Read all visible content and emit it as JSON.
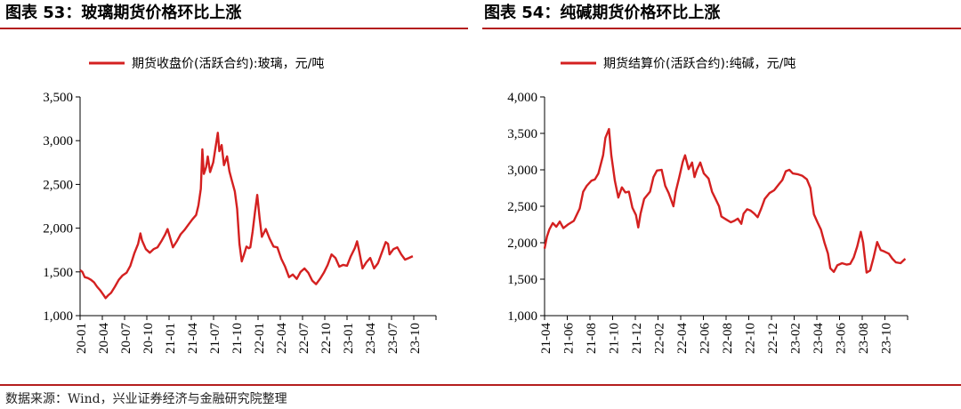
{
  "figures": {
    "left_title": "图表 53：玻璃期货价格环比上涨",
    "right_title": "图表 54：纯碱期货价格环比上涨"
  },
  "source": "数据来源：Wind，兴业证券经济与金融研究院整理",
  "colors": {
    "series": "#d42020",
    "accent": "#b41e1e",
    "axis": "#000000"
  },
  "chart_data": [
    {
      "type": "line",
      "legend": "期货收盘价(活跃合约):玻璃，元/吨",
      "ylim": [
        1000,
        3500
      ],
      "yticks": [
        1000,
        1500,
        2000,
        2500,
        3000,
        3500
      ],
      "ytick_labels": [
        "1,000",
        "1,500",
        "2,000",
        "2,500",
        "3,000",
        "3,500"
      ],
      "xtick_labels": [
        "20-01",
        "20-04",
        "20-07",
        "20-10",
        "21-01",
        "21-04",
        "21-07",
        "21-10",
        "22-01",
        "22-04",
        "22-07",
        "22-10",
        "23-01",
        "23-04",
        "23-07",
        "23-10"
      ],
      "x_range_months": [
        0,
        46
      ],
      "series": [
        {
          "points": [
            [
              0,
              1520
            ],
            [
              0.3,
              1500
            ],
            [
              0.6,
              1440
            ],
            [
              1.0,
              1430
            ],
            [
              1.4,
              1410
            ],
            [
              1.8,
              1380
            ],
            [
              2.2,
              1330
            ],
            [
              2.6,
              1290
            ],
            [
              3.0,
              1240
            ],
            [
              3.3,
              1200
            ],
            [
              3.6,
              1230
            ],
            [
              4.0,
              1260
            ],
            [
              4.5,
              1330
            ],
            [
              5.0,
              1410
            ],
            [
              5.5,
              1460
            ],
            [
              6.0,
              1490
            ],
            [
              6.5,
              1570
            ],
            [
              7.0,
              1710
            ],
            [
              7.5,
              1820
            ],
            [
              7.8,
              1940
            ],
            [
              8.0,
              1860
            ],
            [
              8.5,
              1760
            ],
            [
              9.0,
              1720
            ],
            [
              9.5,
              1760
            ],
            [
              10,
              1780
            ],
            [
              10.5,
              1850
            ],
            [
              11,
              1930
            ],
            [
              11.3,
              1990
            ],
            [
              11.6,
              1900
            ],
            [
              12,
              1780
            ],
            [
              12.5,
              1850
            ],
            [
              13,
              1930
            ],
            [
              13.5,
              1980
            ],
            [
              14,
              2040
            ],
            [
              14.5,
              2100
            ],
            [
              15,
              2150
            ],
            [
              15.3,
              2260
            ],
            [
              15.6,
              2450
            ],
            [
              15.8,
              2900
            ],
            [
              16,
              2620
            ],
            [
              16.3,
              2700
            ],
            [
              16.5,
              2820
            ],
            [
              16.8,
              2640
            ],
            [
              17.2,
              2750
            ],
            [
              17.5,
              2920
            ],
            [
              17.8,
              3090
            ],
            [
              18,
              2880
            ],
            [
              18.3,
              2950
            ],
            [
              18.6,
              2720
            ],
            [
              19,
              2820
            ],
            [
              19.3,
              2650
            ],
            [
              19.6,
              2550
            ],
            [
              20,
              2420
            ],
            [
              20.3,
              2220
            ],
            [
              20.6,
              1820
            ],
            [
              20.9,
              1620
            ],
            [
              21.2,
              1700
            ],
            [
              21.5,
              1790
            ],
            [
              21.8,
              1770
            ],
            [
              22,
              1780
            ],
            [
              22.3,
              1960
            ],
            [
              22.6,
              2180
            ],
            [
              22.9,
              2380
            ],
            [
              23.2,
              2120
            ],
            [
              23.5,
              1900
            ],
            [
              24,
              1990
            ],
            [
              24.5,
              1880
            ],
            [
              25,
              1790
            ],
            [
              25.5,
              1780
            ],
            [
              26,
              1650
            ],
            [
              26.5,
              1560
            ],
            [
              27,
              1440
            ],
            [
              27.5,
              1470
            ],
            [
              28,
              1420
            ],
            [
              28.5,
              1500
            ],
            [
              29,
              1540
            ],
            [
              29.5,
              1490
            ],
            [
              30,
              1400
            ],
            [
              30.5,
              1360
            ],
            [
              31,
              1420
            ],
            [
              31.5,
              1490
            ],
            [
              32,
              1580
            ],
            [
              32.5,
              1700
            ],
            [
              33,
              1660
            ],
            [
              33.5,
              1560
            ],
            [
              34,
              1580
            ],
            [
              34.5,
              1570
            ],
            [
              35,
              1680
            ],
            [
              35.5,
              1770
            ],
            [
              35.8,
              1850
            ],
            [
              36,
              1770
            ],
            [
              36.5,
              1540
            ],
            [
              37,
              1610
            ],
            [
              37.5,
              1660
            ],
            [
              38,
              1540
            ],
            [
              38.5,
              1600
            ],
            [
              39,
              1720
            ],
            [
              39.5,
              1840
            ],
            [
              39.8,
              1820
            ],
            [
              40,
              1700
            ],
            [
              40.5,
              1760
            ],
            [
              41,
              1780
            ],
            [
              41.5,
              1700
            ],
            [
              42,
              1640
            ],
            [
              42.5,
              1660
            ],
            [
              43,
              1680
            ]
          ]
        }
      ]
    },
    {
      "type": "line",
      "legend": "期货结算价(活跃合约):纯碱，元/吨",
      "ylim": [
        1000,
        4000
      ],
      "yticks": [
        1000,
        1500,
        2000,
        2500,
        3000,
        3500,
        4000
      ],
      "ytick_labels": [
        "1,000",
        "1,500",
        "2,000",
        "2,500",
        "3,000",
        "3,500",
        "4,000"
      ],
      "xtick_labels": [
        "21-04",
        "21-06",
        "21-08",
        "21-10",
        "21-12",
        "22-02",
        "22-04",
        "22-06",
        "22-08",
        "22-10",
        "22-12",
        "23-02",
        "23-04",
        "23-06",
        "23-08",
        "23-10"
      ],
      "x_range_months": [
        0,
        31
      ],
      "series": [
        {
          "points": [
            [
              0,
              1920
            ],
            [
              0.2,
              2080
            ],
            [
              0.4,
              2180
            ],
            [
              0.7,
              2270
            ],
            [
              1.0,
              2220
            ],
            [
              1.3,
              2290
            ],
            [
              1.6,
              2200
            ],
            [
              2,
              2250
            ],
            [
              2.5,
              2300
            ],
            [
              3,
              2470
            ],
            [
              3.3,
              2700
            ],
            [
              3.6,
              2780
            ],
            [
              4,
              2850
            ],
            [
              4.3,
              2870
            ],
            [
              4.6,
              2950
            ],
            [
              5,
              3200
            ],
            [
              5.2,
              3440
            ],
            [
              5.5,
              3560
            ],
            [
              5.7,
              3200
            ],
            [
              6,
              2850
            ],
            [
              6.3,
              2620
            ],
            [
              6.6,
              2760
            ],
            [
              6.9,
              2690
            ],
            [
              7.2,
              2700
            ],
            [
              7.5,
              2480
            ],
            [
              7.8,
              2380
            ],
            [
              8,
              2210
            ],
            [
              8.2,
              2400
            ],
            [
              8.5,
              2600
            ],
            [
              9,
              2700
            ],
            [
              9.3,
              2900
            ],
            [
              9.6,
              2990
            ],
            [
              10,
              3000
            ],
            [
              10.3,
              2780
            ],
            [
              10.6,
              2680
            ],
            [
              11,
              2500
            ],
            [
              11.2,
              2700
            ],
            [
              11.5,
              2900
            ],
            [
              11.8,
              3110
            ],
            [
              12,
              3200
            ],
            [
              12.3,
              3010
            ],
            [
              12.6,
              3100
            ],
            [
              12.8,
              2900
            ],
            [
              13,
              3000
            ],
            [
              13.3,
              3100
            ],
            [
              13.6,
              2950
            ],
            [
              14,
              2880
            ],
            [
              14.3,
              2700
            ],
            [
              14.6,
              2600
            ],
            [
              14.9,
              2500
            ],
            [
              15.1,
              2360
            ],
            [
              15.5,
              2320
            ],
            [
              15.9,
              2280
            ],
            [
              16.2,
              2300
            ],
            [
              16.5,
              2330
            ],
            [
              16.8,
              2260
            ],
            [
              17,
              2400
            ],
            [
              17.3,
              2460
            ],
            [
              17.6,
              2440
            ],
            [
              17.9,
              2400
            ],
            [
              18.2,
              2350
            ],
            [
              18.5,
              2470
            ],
            [
              18.8,
              2600
            ],
            [
              19.2,
              2680
            ],
            [
              19.6,
              2720
            ],
            [
              20,
              2800
            ],
            [
              20.3,
              2860
            ],
            [
              20.6,
              2980
            ],
            [
              20.9,
              3000
            ],
            [
              21.2,
              2950
            ],
            [
              21.6,
              2940
            ],
            [
              22,
              2920
            ],
            [
              22.4,
              2870
            ],
            [
              22.7,
              2750
            ],
            [
              23,
              2390
            ],
            [
              23.3,
              2280
            ],
            [
              23.6,
              2180
            ],
            [
              23.9,
              2000
            ],
            [
              24.2,
              1850
            ],
            [
              24.4,
              1650
            ],
            [
              24.7,
              1600
            ],
            [
              25,
              1690
            ],
            [
              25.4,
              1720
            ],
            [
              25.8,
              1700
            ],
            [
              26.1,
              1710
            ],
            [
              26.4,
              1800
            ],
            [
              26.7,
              1950
            ],
            [
              27,
              2150
            ],
            [
              27.2,
              2000
            ],
            [
              27.5,
              1590
            ],
            [
              27.8,
              1620
            ],
            [
              28.1,
              1800
            ],
            [
              28.4,
              2010
            ],
            [
              28.7,
              1900
            ],
            [
              29.0,
              1880
            ],
            [
              29.4,
              1850
            ],
            [
              29.7,
              1780
            ],
            [
              30,
              1730
            ],
            [
              30.4,
              1720
            ],
            [
              30.8,
              1780
            ]
          ]
        }
      ]
    }
  ]
}
